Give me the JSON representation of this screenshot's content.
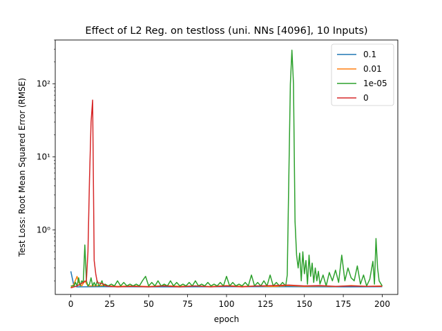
{
  "chart_data": {
    "type": "line",
    "title": "Effect of L2 Reg. on testloss (uni. NNs [4096], 10 Inputs)",
    "xlabel": "epoch",
    "ylabel": "Test Loss: Root Mean Squared Error (RMSE)",
    "xlim": [
      -10,
      210
    ],
    "ylim": [
      0.13,
      400
    ],
    "yscale": "log",
    "xticks": [
      0,
      25,
      50,
      75,
      100,
      125,
      150,
      175,
      200
    ],
    "xtick_labels": [
      "0",
      "25",
      "50",
      "75",
      "100",
      "125",
      "150",
      "175",
      "200"
    ],
    "yticks": [
      1,
      10,
      100
    ],
    "ytick_labels": [
      "10⁰",
      "10¹",
      "10²"
    ],
    "grid": false,
    "legend_placement": "top-right",
    "series": [
      {
        "name": "0.1",
        "color": "#1f77b4",
        "points": [
          [
            0,
            0.27
          ],
          [
            2,
            0.17
          ],
          [
            4,
            0.165
          ],
          [
            20,
            0.166
          ],
          [
            60,
            0.165
          ],
          [
            100,
            0.166
          ],
          [
            140,
            0.166
          ],
          [
            180,
            0.165
          ],
          [
            200,
            0.166
          ]
        ]
      },
      {
        "name": "0.01",
        "color": "#ff7f0e",
        "points": [
          [
            0,
            0.16
          ],
          [
            2,
            0.18
          ],
          [
            4,
            0.23
          ],
          [
            5,
            0.19
          ],
          [
            7,
            0.17
          ],
          [
            9,
            0.2
          ],
          [
            11,
            0.17
          ],
          [
            14,
            0.17
          ],
          [
            20,
            0.172
          ],
          [
            30,
            0.168
          ],
          [
            40,
            0.17
          ],
          [
            50,
            0.167
          ],
          [
            60,
            0.172
          ],
          [
            70,
            0.168
          ],
          [
            80,
            0.17
          ],
          [
            90,
            0.167
          ],
          [
            100,
            0.172
          ],
          [
            110,
            0.168
          ],
          [
            120,
            0.17
          ],
          [
            130,
            0.167
          ],
          [
            140,
            0.172
          ],
          [
            150,
            0.168
          ],
          [
            160,
            0.17
          ],
          [
            170,
            0.167
          ],
          [
            180,
            0.172
          ],
          [
            190,
            0.168
          ],
          [
            200,
            0.17
          ]
        ]
      },
      {
        "name": "1e-05",
        "color": "#2ca02c",
        "points": [
          [
            0,
            0.17
          ],
          [
            2,
            0.17
          ],
          [
            3,
            0.19
          ],
          [
            4,
            0.17
          ],
          [
            5,
            0.22
          ],
          [
            6,
            0.17
          ],
          [
            7,
            0.2
          ],
          [
            8,
            0.19
          ],
          [
            9,
            0.62
          ],
          [
            10,
            0.2
          ],
          [
            11,
            0.17
          ],
          [
            12,
            0.18
          ],
          [
            13,
            0.22
          ],
          [
            14,
            0.17
          ],
          [
            15,
            0.19
          ],
          [
            16,
            0.17
          ],
          [
            17,
            0.2
          ],
          [
            18,
            0.17
          ],
          [
            19,
            0.18
          ],
          [
            20,
            0.2
          ],
          [
            21,
            0.17
          ],
          [
            22,
            0.18
          ],
          [
            24,
            0.17
          ],
          [
            26,
            0.18
          ],
          [
            28,
            0.17
          ],
          [
            30,
            0.2
          ],
          [
            32,
            0.17
          ],
          [
            34,
            0.19
          ],
          [
            36,
            0.17
          ],
          [
            38,
            0.18
          ],
          [
            40,
            0.17
          ],
          [
            42,
            0.18
          ],
          [
            44,
            0.17
          ],
          [
            46,
            0.2
          ],
          [
            48,
            0.23
          ],
          [
            50,
            0.17
          ],
          [
            52,
            0.19
          ],
          [
            54,
            0.17
          ],
          [
            56,
            0.2
          ],
          [
            58,
            0.17
          ],
          [
            60,
            0.18
          ],
          [
            62,
            0.17
          ],
          [
            64,
            0.2
          ],
          [
            66,
            0.17
          ],
          [
            68,
            0.19
          ],
          [
            70,
            0.17
          ],
          [
            72,
            0.18
          ],
          [
            74,
            0.17
          ],
          [
            76,
            0.19
          ],
          [
            78,
            0.17
          ],
          [
            80,
            0.2
          ],
          [
            82,
            0.17
          ],
          [
            84,
            0.18
          ],
          [
            86,
            0.17
          ],
          [
            88,
            0.19
          ],
          [
            90,
            0.17
          ],
          [
            92,
            0.18
          ],
          [
            94,
            0.17
          ],
          [
            96,
            0.19
          ],
          [
            98,
            0.17
          ],
          [
            100,
            0.23
          ],
          [
            102,
            0.17
          ],
          [
            104,
            0.19
          ],
          [
            106,
            0.17
          ],
          [
            108,
            0.18
          ],
          [
            110,
            0.17
          ],
          [
            112,
            0.19
          ],
          [
            114,
            0.17
          ],
          [
            116,
            0.24
          ],
          [
            118,
            0.17
          ],
          [
            120,
            0.19
          ],
          [
            122,
            0.17
          ],
          [
            124,
            0.2
          ],
          [
            126,
            0.17
          ],
          [
            128,
            0.24
          ],
          [
            130,
            0.17
          ],
          [
            132,
            0.19
          ],
          [
            134,
            0.17
          ],
          [
            136,
            0.19
          ],
          [
            138,
            0.17
          ],
          [
            139,
            0.24
          ],
          [
            140,
            5
          ],
          [
            141,
            100
          ],
          [
            142,
            290
          ],
          [
            143,
            100
          ],
          [
            144,
            1.3
          ],
          [
            145,
            0.45
          ],
          [
            146,
            0.3
          ],
          [
            147,
            0.48
          ],
          [
            148,
            0.2
          ],
          [
            149,
            0.5
          ],
          [
            150,
            0.25
          ],
          [
            151,
            0.38
          ],
          [
            152,
            0.18
          ],
          [
            153,
            0.45
          ],
          [
            154,
            0.23
          ],
          [
            155,
            0.35
          ],
          [
            156,
            0.19
          ],
          [
            157,
            0.3
          ],
          [
            158,
            0.2
          ],
          [
            159,
            0.27
          ],
          [
            160,
            0.18
          ],
          [
            162,
            0.24
          ],
          [
            164,
            0.17
          ],
          [
            166,
            0.26
          ],
          [
            168,
            0.2
          ],
          [
            170,
            0.28
          ],
          [
            172,
            0.19
          ],
          [
            174,
            0.45
          ],
          [
            176,
            0.2
          ],
          [
            178,
            0.3
          ],
          [
            180,
            0.22
          ],
          [
            182,
            0.2
          ],
          [
            184,
            0.32
          ],
          [
            186,
            0.18
          ],
          [
            188,
            0.24
          ],
          [
            190,
            0.17
          ],
          [
            192,
            0.21
          ],
          [
            194,
            0.37
          ],
          [
            195,
            0.18
          ],
          [
            196,
            0.76
          ],
          [
            197,
            0.3
          ],
          [
            198,
            0.2
          ],
          [
            200,
            0.17
          ]
        ]
      },
      {
        "name": "0",
        "color": "#d62728",
        "points": [
          [
            0,
            0.16
          ],
          [
            2,
            0.165
          ],
          [
            4,
            0.17
          ],
          [
            6,
            0.18
          ],
          [
            8,
            0.19
          ],
          [
            10,
            0.2
          ],
          [
            11,
            0.5
          ],
          [
            12,
            5
          ],
          [
            13,
            30
          ],
          [
            14,
            60
          ],
          [
            15,
            0.38
          ],
          [
            16,
            0.25
          ],
          [
            17,
            0.19
          ],
          [
            19,
            0.185
          ],
          [
            21,
            0.18
          ],
          [
            23,
            0.17
          ],
          [
            25,
            0.168
          ],
          [
            30,
            0.165
          ],
          [
            40,
            0.168
          ],
          [
            50,
            0.165
          ],
          [
            60,
            0.17
          ],
          [
            70,
            0.165
          ],
          [
            80,
            0.17
          ],
          [
            90,
            0.165
          ],
          [
            100,
            0.17
          ],
          [
            110,
            0.165
          ],
          [
            120,
            0.17
          ],
          [
            130,
            0.172
          ],
          [
            140,
            0.175
          ],
          [
            150,
            0.17
          ],
          [
            160,
            0.172
          ],
          [
            170,
            0.168
          ],
          [
            180,
            0.17
          ],
          [
            190,
            0.168
          ],
          [
            200,
            0.168
          ]
        ]
      }
    ]
  }
}
